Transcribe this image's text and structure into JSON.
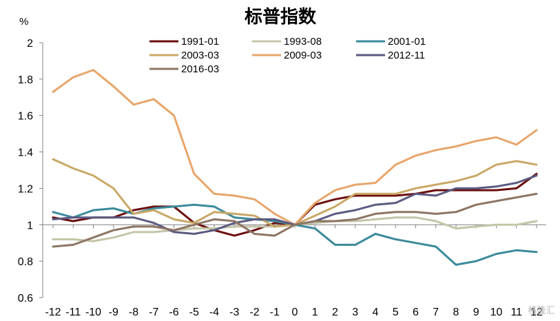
{
  "chart_data": {
    "type": "line",
    "title": "标普指数",
    "ylabel": "%",
    "xlabel": "",
    "x": [
      -12,
      -11,
      -10,
      -9,
      -8,
      -7,
      -6,
      -5,
      -4,
      -3,
      -2,
      -1,
      0,
      1,
      2,
      3,
      4,
      5,
      6,
      7,
      8,
      9,
      10,
      11,
      12
    ],
    "x_tick_labels": [
      "-12",
      "-11",
      "-10",
      "-9",
      "-8",
      "-7",
      "-6",
      "-5",
      "-4",
      "-3",
      "-2",
      "-1",
      "0",
      "1",
      "2",
      "3",
      "4",
      "5",
      "6",
      "7",
      "8",
      "9",
      "10",
      "11",
      "12"
    ],
    "ylim": [
      0.6,
      2.0
    ],
    "y_ticks": [
      0.6,
      0.8,
      1.0,
      1.2,
      1.4,
      1.6,
      1.8,
      2.0
    ],
    "y_tick_labels": [
      "0.6",
      "0.8",
      "1",
      "1.2",
      "1.4",
      "1.6",
      "1.8",
      "2"
    ],
    "grid": false,
    "legend_position": "top",
    "series": [
      {
        "name": "1991-01",
        "color": "#6b0d0d",
        "values": [
          1.04,
          1.02,
          1.04,
          1.04,
          1.08,
          1.1,
          1.1,
          1.01,
          0.97,
          0.94,
          0.97,
          1.01,
          1.0,
          1.11,
          1.14,
          1.16,
          1.16,
          1.16,
          1.17,
          1.19,
          1.19,
          1.19,
          1.19,
          1.2,
          1.28
        ]
      },
      {
        "name": "1993-08",
        "color": "#c4c4a8",
        "values": [
          0.92,
          0.92,
          0.91,
          0.93,
          0.96,
          0.96,
          0.97,
          0.98,
          0.98,
          0.99,
          0.99,
          0.99,
          1.0,
          1.01,
          1.02,
          1.02,
          1.03,
          1.04,
          1.04,
          1.02,
          0.98,
          0.99,
          1.0,
          1.0,
          1.02
        ]
      },
      {
        "name": "2001-01",
        "color": "#3a8a9a",
        "values": [
          1.07,
          1.04,
          1.08,
          1.09,
          1.06,
          1.09,
          1.1,
          1.11,
          1.1,
          1.04,
          1.03,
          1.02,
          1.0,
          0.98,
          0.89,
          0.89,
          0.95,
          0.92,
          0.9,
          0.88,
          0.78,
          0.8,
          0.84,
          0.86,
          0.85
        ]
      },
      {
        "name": "2003-03",
        "color": "#c9a866",
        "values": [
          1.36,
          1.31,
          1.27,
          1.2,
          1.06,
          1.08,
          1.03,
          1.01,
          1.07,
          1.06,
          1.05,
          0.99,
          1.0,
          1.05,
          1.1,
          1.17,
          1.17,
          1.17,
          1.2,
          1.22,
          1.24,
          1.27,
          1.33,
          1.35,
          1.33
        ]
      },
      {
        "name": "2009-03",
        "color": "#e8a56a",
        "values": [
          1.73,
          1.81,
          1.85,
          1.76,
          1.66,
          1.69,
          1.6,
          1.28,
          1.17,
          1.16,
          1.14,
          1.06,
          1.0,
          1.12,
          1.19,
          1.22,
          1.23,
          1.33,
          1.38,
          1.41,
          1.43,
          1.46,
          1.48,
          1.44,
          1.52
        ]
      },
      {
        "name": "2012-11",
        "color": "#5a5a82",
        "values": [
          1.03,
          1.04,
          1.04,
          1.04,
          1.04,
          1.01,
          0.96,
          0.95,
          0.97,
          1.01,
          1.03,
          1.03,
          1.0,
          1.02,
          1.06,
          1.08,
          1.11,
          1.12,
          1.17,
          1.16,
          1.2,
          1.2,
          1.21,
          1.23,
          1.27
        ]
      },
      {
        "name": "2016-03",
        "color": "#8c7563",
        "values": [
          0.88,
          0.89,
          0.93,
          0.97,
          0.99,
          0.99,
          0.97,
          1.0,
          1.03,
          1.02,
          0.95,
          0.94,
          1.0,
          1.02,
          1.02,
          1.03,
          1.06,
          1.07,
          1.07,
          1.06,
          1.07,
          1.11,
          1.13,
          1.15,
          1.17
        ]
      }
    ]
  },
  "watermark": "格隆汇"
}
